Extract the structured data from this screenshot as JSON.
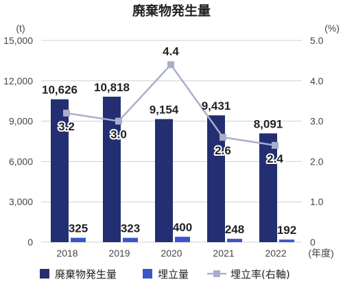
{
  "chart_data": {
    "type": "bar",
    "title": "廃棄物発生量",
    "left_unit": "(t)",
    "right_unit": "(%)",
    "categories": [
      "2018",
      "2019",
      "2020",
      "2021",
      "2022"
    ],
    "category_suffix": "(年度)",
    "y_left": {
      "min": 0,
      "max": 15000,
      "ticks": [
        "0",
        "3,000",
        "6,000",
        "9,000",
        "12,000",
        "15,000"
      ]
    },
    "y_right": {
      "min": 0,
      "max": 5.0,
      "ticks": [
        "0",
        "1.0",
        "2.0",
        "3.0",
        "4.0",
        "5.0"
      ]
    },
    "grid": true,
    "legend_position": "bottom",
    "series": [
      {
        "name": "廃棄物発生量",
        "kind": "bar",
        "axis": "left",
        "color": "#232f72",
        "values": [
          10626,
          10818,
          9154,
          9431,
          8091
        ],
        "labels": [
          "10,626",
          "10,818",
          "9,154",
          "9,431",
          "8,091"
        ]
      },
      {
        "name": "埋立量",
        "kind": "bar",
        "axis": "left",
        "color": "#3b55c8",
        "values": [
          325,
          323,
          400,
          248,
          192
        ],
        "labels": [
          "325",
          "323",
          "400",
          "248",
          "192"
        ]
      },
      {
        "name": "埋立率(右軸)",
        "kind": "line",
        "axis": "right",
        "color": "#a9aecb",
        "values": [
          3.2,
          3.0,
          4.4,
          2.6,
          2.4
        ],
        "labels": [
          "3.2",
          "3.0",
          "4.4",
          "2.6",
          "2.4"
        ]
      }
    ]
  }
}
